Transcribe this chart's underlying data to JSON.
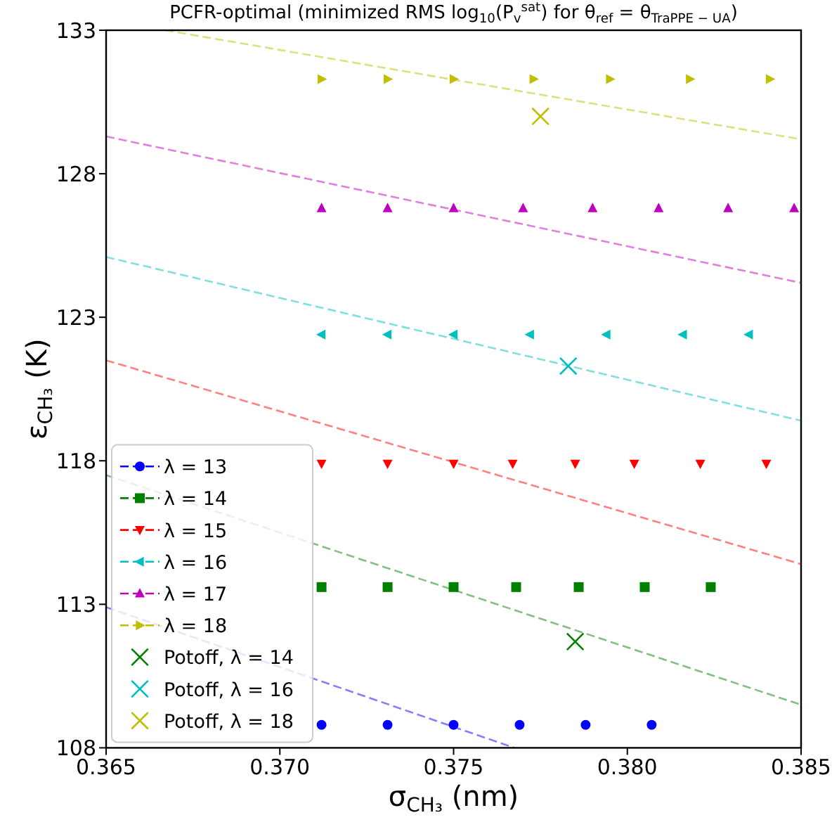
{
  "chart_data": {
    "type": "scatter",
    "title": "PCFR-optimal (minimized RMS log$_{10}$(P$_{v}$$^{sat}$) for θ$_{ref}$ = θ$_{TraPPE − UA}$)",
    "xlabel": "σ$_{CH₃}$ (nm)",
    "ylabel": "ε$_{CH₃}$ (K)",
    "xlim": [
      0.365,
      0.385
    ],
    "xticks": [
      0.365,
      {
        "value": 0.37,
        "label": "0.370"
      },
      0.375,
      {
        "value": 0.38,
        "label": "0.380"
      },
      0.385
    ],
    "ylim": [
      108,
      133
    ],
    "yticks": [
      108,
      113,
      118,
      123,
      128,
      133
    ],
    "grid": false,
    "legend": "bottom left",
    "line_style": "dashed",
    "series": [
      {
        "type": "line",
        "marker": "none",
        "color": "#8080ff",
        "x": [
          0.365,
          0.37675
        ],
        "values": [
          112.9,
          108
        ]
      },
      {
        "type": "line",
        "marker": "none",
        "color": "#80c080",
        "x": [
          0.365,
          0.385
        ],
        "values": [
          117.5,
          109.5
        ]
      },
      {
        "type": "line",
        "marker": "none",
        "color": "#ff8080",
        "x": [
          0.365,
          0.385
        ],
        "values": [
          121.5,
          114.4
        ]
      },
      {
        "type": "line",
        "marker": "none",
        "color": "#80dfdf",
        "x": [
          0.365,
          0.385
        ],
        "values": [
          125.1,
          119.4
        ]
      },
      {
        "type": "line",
        "marker": "none",
        "color": "#df80df",
        "x": [
          0.365,
          0.385
        ],
        "values": [
          129.3,
          124.2
        ]
      },
      {
        "type": "line",
        "marker": "none",
        "color": "#dfdf80",
        "x": [
          0.3667,
          0.385
        ],
        "values": [
          133,
          129.2
        ]
      },
      {
        "name": "λ = 13",
        "marker": "circle",
        "color": "#0000ff",
        "x": [
          0.3712,
          0.3731,
          0.375,
          0.3769,
          0.3788,
          0.3807
        ],
        "values": [
          108.8,
          108.8,
          108.8,
          108.8,
          108.8,
          108.8
        ]
      },
      {
        "name": "λ = 14",
        "marker": "square",
        "color": "#008000",
        "x": [
          0.3712,
          0.3731,
          0.375,
          0.3768,
          0.3786,
          0.3805,
          0.3824
        ],
        "values": [
          113.6,
          113.6,
          113.6,
          113.6,
          113.6,
          113.6,
          113.6
        ]
      },
      {
        "name": "λ = 15",
        "marker": "triangle-down",
        "color": "#ff0000",
        "x": [
          0.3712,
          0.3731,
          0.375,
          0.3767,
          0.3785,
          0.3802,
          0.3821,
          0.384
        ],
        "values": [
          117.9,
          117.9,
          117.9,
          117.9,
          117.9,
          117.9,
          117.9,
          117.9
        ]
      },
      {
        "name": "λ = 16",
        "marker": "triangle-left",
        "color": "#00bfbf",
        "x": [
          0.3712,
          0.3731,
          0.375,
          0.3772,
          0.3794,
          0.3816,
          0.3835
        ],
        "values": [
          122.4,
          122.4,
          122.4,
          122.4,
          122.4,
          122.4,
          122.4
        ]
      },
      {
        "name": "λ = 17",
        "marker": "triangle",
        "color": "#bf00bf",
        "x": [
          0.3712,
          0.3731,
          0.375,
          0.377,
          0.379,
          0.3809,
          0.3829,
          0.3848
        ],
        "values": [
          126.8,
          126.8,
          126.8,
          126.8,
          126.8,
          126.8,
          126.8,
          126.8
        ]
      },
      {
        "name": "λ = 18",
        "marker": "triangle-right",
        "color": "#bfbf00",
        "x": [
          0.3712,
          0.3731,
          0.375,
          0.3773,
          0.3795,
          0.3818,
          0.3841
        ],
        "values": [
          131.3,
          131.3,
          131.3,
          131.3,
          131.3,
          131.3,
          131.3
        ]
      },
      {
        "name": "Potoff, λ = 14",
        "marker": "cross",
        "color": "#008000",
        "x": [
          0.3785
        ],
        "values": [
          111.7
        ]
      },
      {
        "name": "Potoff, λ = 16",
        "marker": "cross",
        "color": "#00bfbf",
        "x": [
          0.3783
        ],
        "values": [
          121.3
        ]
      },
      {
        "name": "Potoff, λ = 18",
        "marker": "cross",
        "color": "#bfbf00",
        "x": [
          0.3775
        ],
        "values": [
          130.0
        ]
      }
    ]
  }
}
